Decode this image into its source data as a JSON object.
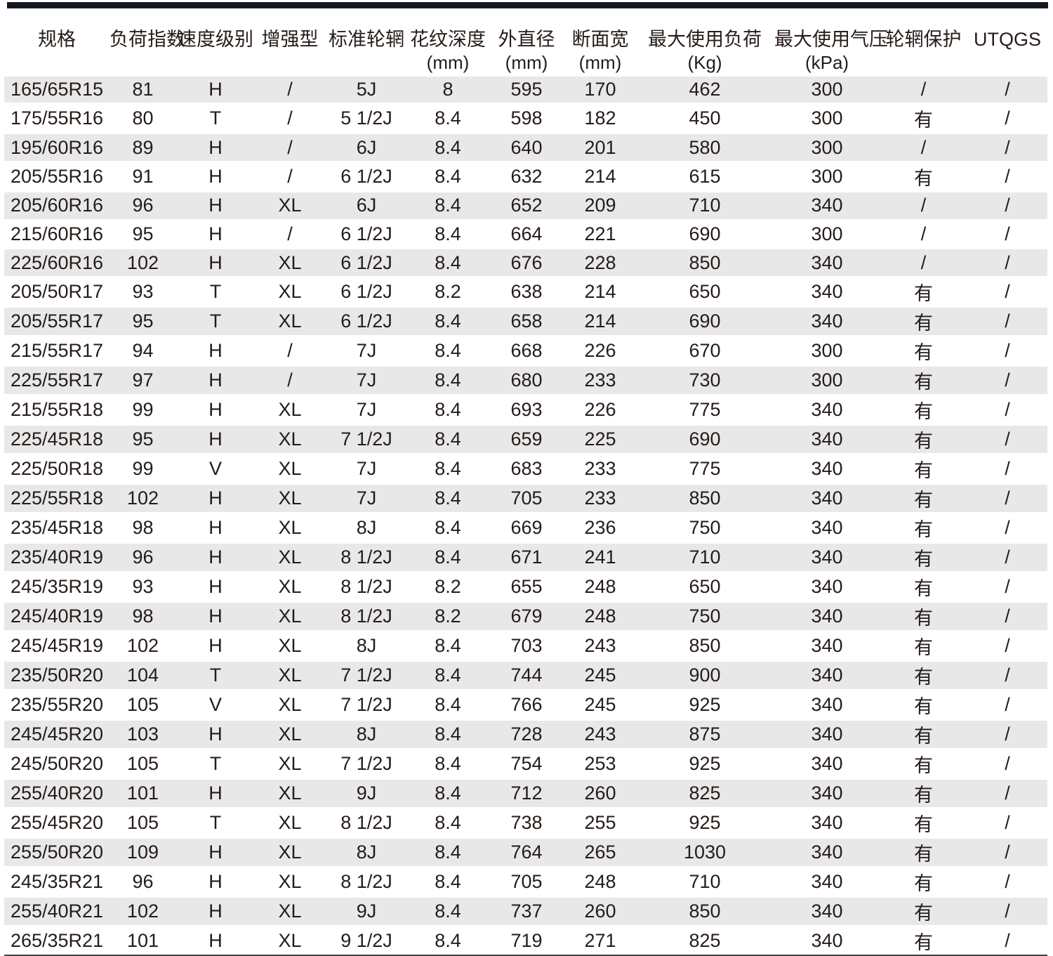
{
  "colors": {
    "top_bar": "#131820",
    "band": "#e8e8e8",
    "text": "#251c19",
    "header_rule": "#232323",
    "bottom_rule": "#454545"
  },
  "table": {
    "columns": [
      {
        "label": "规格",
        "unit": ""
      },
      {
        "label": "负荷指数",
        "unit": ""
      },
      {
        "label": "速度级别",
        "unit": ""
      },
      {
        "label": "增强型",
        "unit": ""
      },
      {
        "label": "标准轮辋",
        "unit": ""
      },
      {
        "label": "花纹深度",
        "unit": "(mm)"
      },
      {
        "label": "外直径",
        "unit": "(mm)"
      },
      {
        "label": "断面宽",
        "unit": "(mm)"
      },
      {
        "label": "最大使用负荷",
        "unit": "(Kg)"
      },
      {
        "label": "最大使用气压",
        "unit": "(kPa)"
      },
      {
        "label": "轮辋保护",
        "unit": ""
      },
      {
        "label": "UTQGS",
        "unit": ""
      }
    ],
    "rows": [
      [
        "165/65R15",
        "81",
        "H",
        "/",
        "5J",
        "8",
        "595",
        "170",
        "462",
        "300",
        "/",
        "/"
      ],
      [
        "175/55R16",
        "80",
        "T",
        "/",
        "5 1/2J",
        "8.4",
        "598",
        "182",
        "450",
        "300",
        "有",
        "/"
      ],
      [
        "195/60R16",
        "89",
        "H",
        "/",
        "6J",
        "8.4",
        "640",
        "201",
        "580",
        "300",
        "/",
        "/"
      ],
      [
        "205/55R16",
        "91",
        "H",
        "/",
        "6 1/2J",
        "8.4",
        "632",
        "214",
        "615",
        "300",
        "有",
        "/"
      ],
      [
        "205/60R16",
        "96",
        "H",
        "XL",
        "6J",
        "8.4",
        "652",
        "209",
        "710",
        "340",
        "/",
        "/"
      ],
      [
        "215/60R16",
        "95",
        "H",
        "/",
        "6 1/2J",
        "8.4",
        "664",
        "221",
        "690",
        "300",
        "/",
        "/"
      ],
      [
        "225/60R16",
        "102",
        "H",
        "XL",
        "6 1/2J",
        "8.4",
        "676",
        "228",
        "850",
        "340",
        "/",
        "/"
      ],
      [
        "205/50R17",
        "93",
        "T",
        "XL",
        "6 1/2J",
        "8.2",
        "638",
        "214",
        "650",
        "340",
        "有",
        "/"
      ],
      [
        "205/55R17",
        "95",
        "T",
        "XL",
        "6 1/2J",
        "8.4",
        "658",
        "214",
        "690",
        "340",
        "有",
        "/"
      ],
      [
        "215/55R17",
        "94",
        "H",
        "/",
        "7J",
        "8.4",
        "668",
        "226",
        "670",
        "300",
        "有",
        "/"
      ],
      [
        "225/55R17",
        "97",
        "H",
        "/",
        "7J",
        "8.4",
        "680",
        "233",
        "730",
        "300",
        "有",
        "/"
      ],
      [
        "215/55R18",
        "99",
        "H",
        "XL",
        "7J",
        "8.4",
        "693",
        "226",
        "775",
        "340",
        "有",
        "/"
      ],
      [
        "225/45R18",
        "95",
        "H",
        "XL",
        "7 1/2J",
        "8.4",
        "659",
        "225",
        "690",
        "340",
        "有",
        "/"
      ],
      [
        "225/50R18",
        "99",
        "V",
        "XL",
        "7J",
        "8.4",
        "683",
        "233",
        "775",
        "340",
        "有",
        "/"
      ],
      [
        "225/55R18",
        "102",
        "H",
        "XL",
        "7J",
        "8.4",
        "705",
        "233",
        "850",
        "340",
        "有",
        "/"
      ],
      [
        "235/45R18",
        "98",
        "H",
        "XL",
        "8J",
        "8.4",
        "669",
        "236",
        "750",
        "340",
        "有",
        "/"
      ],
      [
        "235/40R19",
        "96",
        "H",
        "XL",
        "8 1/2J",
        "8.4",
        "671",
        "241",
        "710",
        "340",
        "有",
        "/"
      ],
      [
        "245/35R19",
        "93",
        "H",
        "XL",
        "8 1/2J",
        "8.2",
        "655",
        "248",
        "650",
        "340",
        "有",
        "/"
      ],
      [
        "245/40R19",
        "98",
        "H",
        "XL",
        "8 1/2J",
        "8.2",
        "679",
        "248",
        "750",
        "340",
        "有",
        "/"
      ],
      [
        "245/45R19",
        "102",
        "H",
        "XL",
        "8J",
        "8.4",
        "703",
        "243",
        "850",
        "340",
        "有",
        "/"
      ],
      [
        "235/50R20",
        "104",
        "T",
        "XL",
        "7 1/2J",
        "8.4",
        "744",
        "245",
        "900",
        "340",
        "有",
        "/"
      ],
      [
        "235/55R20",
        "105",
        "V",
        "XL",
        "7 1/2J",
        "8.4",
        "766",
        "245",
        "925",
        "340",
        "有",
        "/"
      ],
      [
        "245/45R20",
        "103",
        "H",
        "XL",
        "8J",
        "8.4",
        "728",
        "243",
        "875",
        "340",
        "有",
        "/"
      ],
      [
        "245/50R20",
        "105",
        "T",
        "XL",
        "7 1/2J",
        "8.4",
        "754",
        "253",
        "925",
        "340",
        "有",
        "/"
      ],
      [
        "255/40R20",
        "101",
        "H",
        "XL",
        "9J",
        "8.4",
        "712",
        "260",
        "825",
        "340",
        "有",
        "/"
      ],
      [
        "255/45R20",
        "105",
        "T",
        "XL",
        "8 1/2J",
        "8.4",
        "738",
        "255",
        "925",
        "340",
        "有",
        "/"
      ],
      [
        "255/50R20",
        "109",
        "H",
        "XL",
        "8J",
        "8.4",
        "764",
        "265",
        "1030",
        "340",
        "有",
        "/"
      ],
      [
        "245/35R21",
        "96",
        "H",
        "XL",
        "8 1/2J",
        "8.4",
        "705",
        "248",
        "710",
        "340",
        "有",
        "/"
      ],
      [
        "255/40R21",
        "102",
        "H",
        "XL",
        "9J",
        "8.4",
        "737",
        "260",
        "850",
        "340",
        "有",
        "/"
      ],
      [
        "265/35R21",
        "101",
        "H",
        "XL",
        "9 1/2J",
        "8.4",
        "719",
        "271",
        "825",
        "340",
        "有",
        "/"
      ]
    ]
  }
}
